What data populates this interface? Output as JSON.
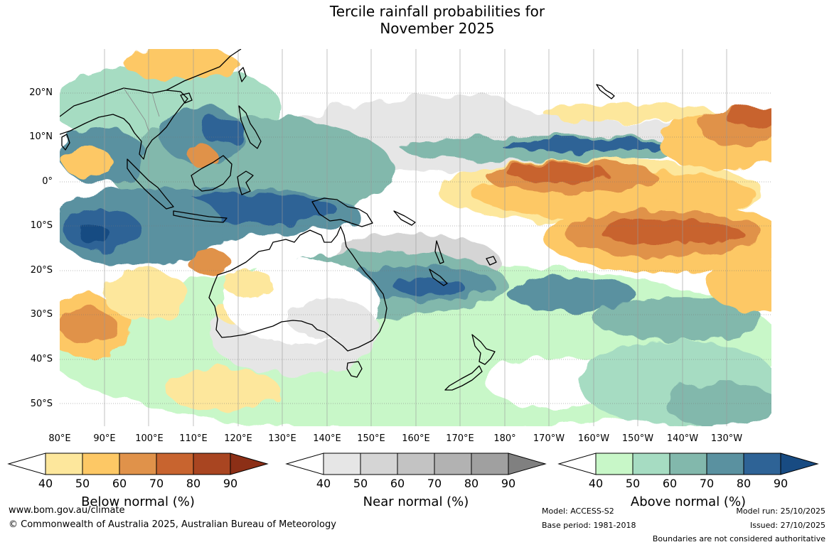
{
  "title": {
    "line1": "Tercile rainfall probabilities for",
    "line2": "November 2025"
  },
  "lat_labels": [
    "20°N",
    "10°N",
    "0°",
    "10°S",
    "20°S",
    "30°S",
    "40°S",
    "50°S"
  ],
  "lon_labels": [
    "80°E",
    "90°E",
    "100°E",
    "110°E",
    "120°E",
    "130°E",
    "140°E",
    "150°E",
    "160°E",
    "170°E",
    "180°",
    "170°W",
    "160°W",
    "150°W",
    "140°W",
    "130°W"
  ],
  "colorbars": [
    {
      "title": "Below normal (%)",
      "ticks": [
        "40",
        "50",
        "60",
        "70",
        "80",
        "90"
      ],
      "colors": [
        "#ffffff",
        "#fde79c",
        "#fdc865",
        "#e0924a",
        "#c8642f",
        "#a94521",
        "#8c2f16"
      ]
    },
    {
      "title": "Near normal (%)",
      "ticks": [
        "40",
        "50",
        "60",
        "70",
        "80",
        "90"
      ],
      "colors": [
        "#ffffff",
        "#e6e6e6",
        "#d5d5d5",
        "#c3c3c3",
        "#b2b2b2",
        "#a0a0a0",
        "#808080"
      ]
    },
    {
      "title": "Above normal (%)",
      "ticks": [
        "40",
        "50",
        "60",
        "70",
        "80",
        "90"
      ],
      "colors": [
        "#ffffff",
        "#c8f7c8",
        "#a6dcc2",
        "#82b8ac",
        "#5a91a0",
        "#2e6396",
        "#184b82"
      ]
    }
  ],
  "footer": {
    "website": "www.bom.gov.au/climate",
    "copyright": "© Commonwealth of Australia 2025, Australian Bureau of Meteorology",
    "model": "Model: ACCESS-S2",
    "base_period": "Base period: 1981-2018",
    "model_run": "Model run: 25/10/2025",
    "issued": "Issued: 27/10/2025",
    "disclaimer": "Boundaries are not considered authoritative"
  }
}
